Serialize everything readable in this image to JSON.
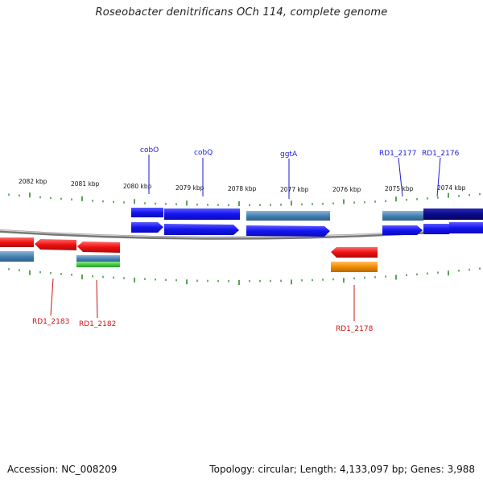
{
  "title": "Roseobacter denitrificans OCh 114, complete genome",
  "footer": {
    "accession": "Accession: NC_008209",
    "summary": "Topology: circular; Length: 4,133,097 bp; Genes: 3,988"
  },
  "scale_labels": [
    "2082 kbp",
    "2081 kbp",
    "2080 kbp",
    "2079 kbp",
    "2078 kbp",
    "2077 kbp",
    "2076 kbp",
    "2075 kbp",
    "2074 kbp"
  ],
  "top_genes": [
    "cobO",
    "cobQ",
    "ggtA",
    "RD1_2177",
    "RD1_2176"
  ],
  "bottom_genes": [
    "RD1_2183",
    "RD1_2182",
    "RD1_2178"
  ],
  "colors": {
    "forward_cds": "#1414f0",
    "forward_gene": "#4682b4",
    "forward_dark": "#0a0a8c",
    "reverse_cds": "#ee1111",
    "reverse_gene": "#4682b4",
    "reverse_green": "#44cc44",
    "reverse_orange": "#f08c00",
    "ticks": "#2e8b2e",
    "backbone": "#888888",
    "label_blue": "#1a1ad6",
    "label_red": "#cc1111"
  }
}
